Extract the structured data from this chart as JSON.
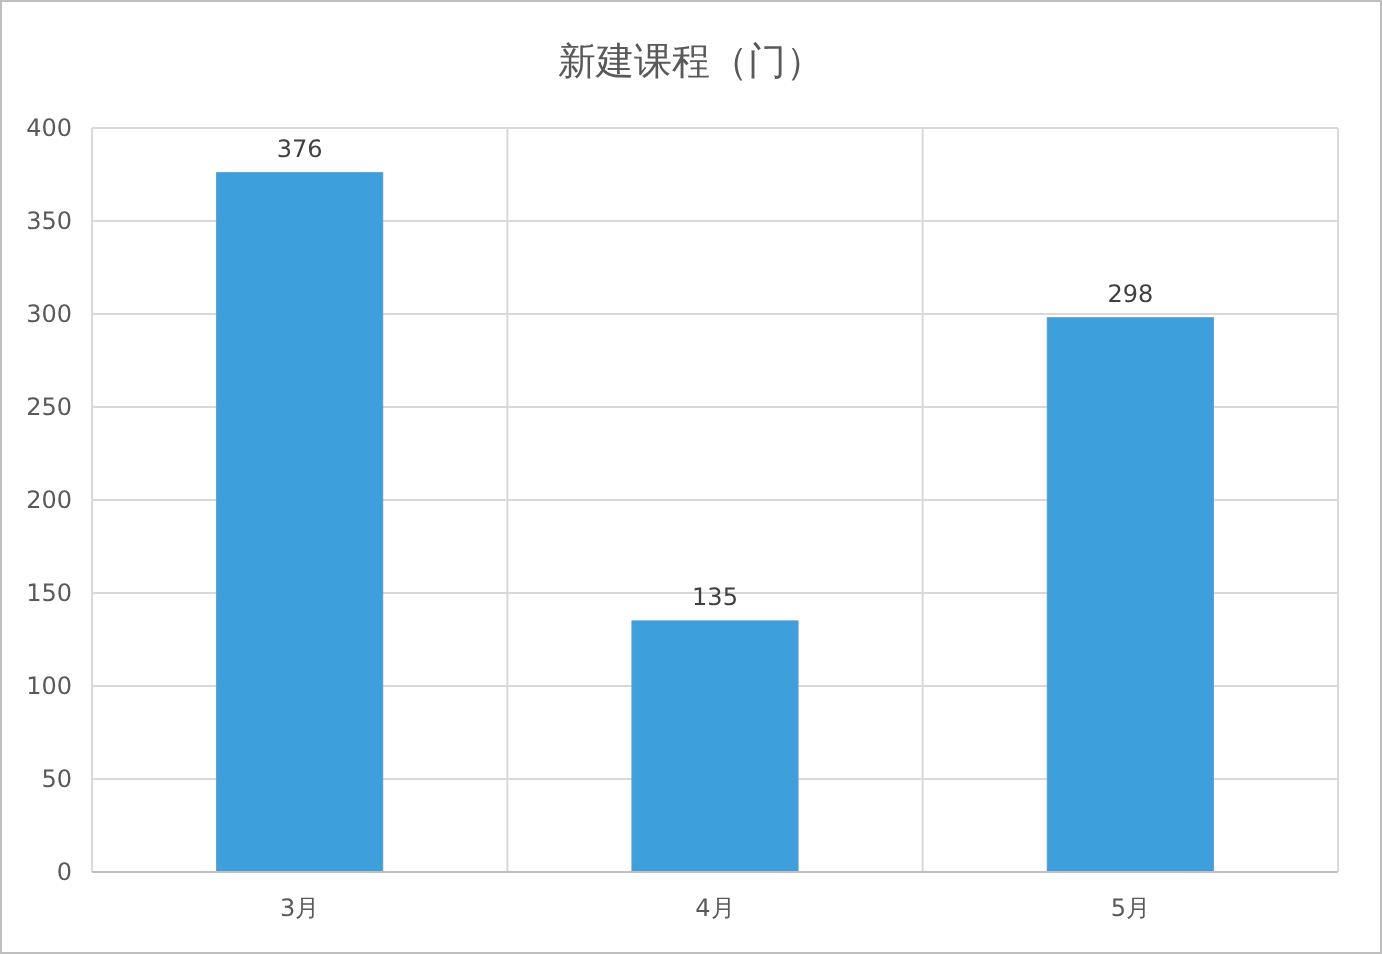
{
  "chart_data": {
    "type": "bar",
    "title": "新建课程（门）",
    "categories": [
      "3月",
      "4月",
      "5月"
    ],
    "values": [
      376,
      135,
      298
    ],
    "color": "#3d9fdc",
    "ylim": [
      0,
      400
    ],
    "yticks": [
      0,
      50,
      100,
      150,
      200,
      250,
      300,
      350,
      400
    ],
    "grid": true,
    "data_labels": true
  }
}
